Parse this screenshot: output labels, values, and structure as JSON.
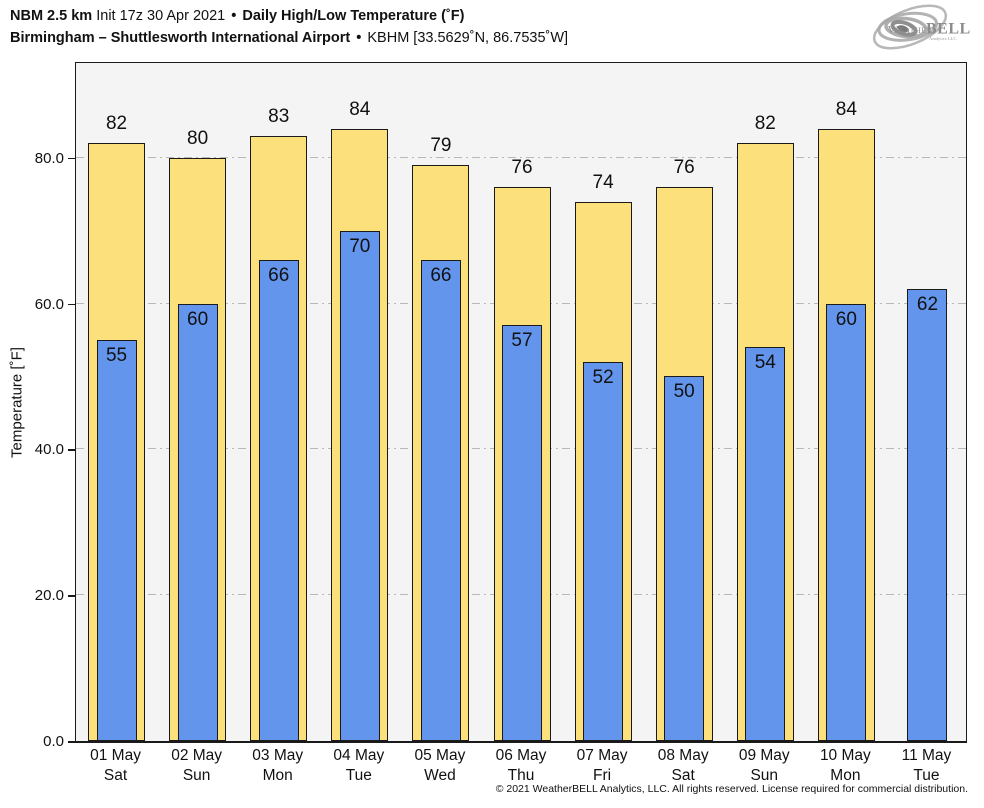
{
  "header": {
    "model": "NBM 2.5 km",
    "init": "Init 17z 30 Apr 2021",
    "sep": "•",
    "product": "Daily High/Low Temperature (˚F)",
    "location": "Birmingham – Shuttlesworth International Airport",
    "station": "KBHM [33.5629˚N, 86.7535˚W]"
  },
  "logo": {
    "part1": "Weather",
    "part2": "BELL",
    "subtitle": "Analytics LLC"
  },
  "chart_data": {
    "type": "bar",
    "title": "NBM 2.5 km Init 17z 30 Apr 2021 • Daily High/Low Temperature (˚F)",
    "subtitle": "Birmingham – Shuttlesworth International Airport • KBHM [33.5629˚N, 86.7535˚W]",
    "categories": [
      "01 May",
      "02 May",
      "03 May",
      "04 May",
      "05 May",
      "06 May",
      "07 May",
      "08 May",
      "09 May",
      "10 May",
      "11 May"
    ],
    "weekdays": [
      "Sat",
      "Sun",
      "Mon",
      "Tue",
      "Wed",
      "Thu",
      "Fri",
      "Sat",
      "Sun",
      "Mon",
      "Tue"
    ],
    "series": [
      {
        "name": "High",
        "color": "#FCE07C",
        "values": [
          82,
          80,
          83,
          84,
          79,
          76,
          74,
          76,
          82,
          84,
          null
        ]
      },
      {
        "name": "Low",
        "color": "#6495ED",
        "values": [
          55,
          60,
          66,
          70,
          66,
          57,
          52,
          50,
          54,
          60,
          62
        ]
      }
    ],
    "xlabel": "",
    "ylabel": "Temperature [˚F]",
    "yticks": [
      {
        "v": 0,
        "label": "0.0"
      },
      {
        "v": 20,
        "label": "20.0"
      },
      {
        "v": 40,
        "label": "40.0"
      },
      {
        "v": 60,
        "label": "60.0"
      },
      {
        "v": 80,
        "label": "80.0"
      }
    ],
    "ylim": [
      0,
      93
    ],
    "grid": "horizontal dash-dot at 20/40/60/80",
    "legend_position": "none",
    "plot_bg": "#f4f4f4",
    "bar_edge_color": "#1a1a1a"
  },
  "footer": {
    "copyright": "© 2021 WeatherBELL Analytics, LLC. All rights reserved. License required for commercial distribution."
  }
}
